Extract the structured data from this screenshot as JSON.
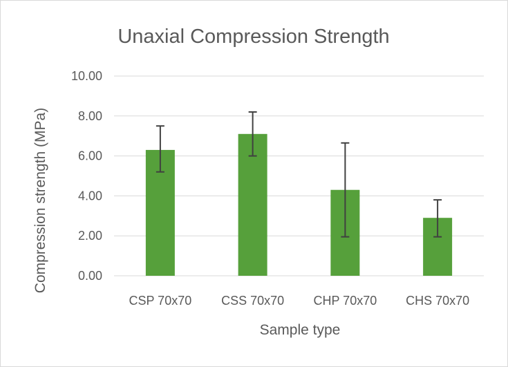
{
  "chart_data": {
    "type": "bar",
    "title": "Unaxial Compression  Strength",
    "xlabel": "Sample type",
    "ylabel": "Compression strength (MPa)",
    "categories": [
      "CSP 70x70",
      "CSS 70x70",
      "CHP 70x70",
      "CHS 70x70"
    ],
    "values": [
      6.3,
      7.1,
      4.3,
      2.9
    ],
    "error_low": [
      5.2,
      6.0,
      1.95,
      1.95
    ],
    "error_high": [
      7.5,
      8.2,
      6.65,
      3.8
    ],
    "ylim": [
      0,
      10
    ],
    "yticks": [
      "0.00",
      "2.00",
      "4.00",
      "6.00",
      "8.00",
      "10.00"
    ],
    "grid": true,
    "bar_color": "#56a03b",
    "error_bar_color": "#404040",
    "gridline_color": "#d9d9d9"
  }
}
